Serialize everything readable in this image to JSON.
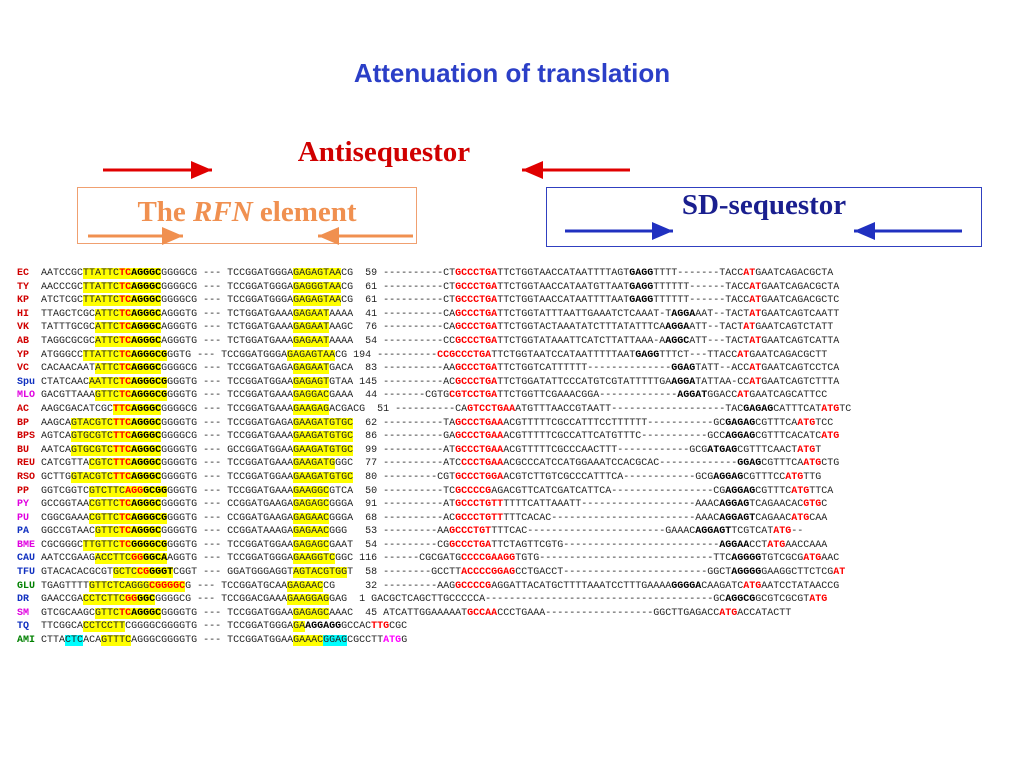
{
  "title": "Attenuation of translation",
  "antisequestor": "Antisequestor",
  "rfn": {
    "pre": "The ",
    "italic": "RFN",
    "post": " element"
  },
  "sd": "SD-sequestor",
  "colors": {
    "title": "#2b3fc7",
    "antisequestor": "#d00000",
    "rfn": "#f09050",
    "sd": "#1a1f8f"
  },
  "name_colors": {
    "r": "#d00000",
    "b": "#1030c0",
    "m": "#e000e0",
    "g": "#008000"
  },
  "rows": [
    {
      "name": "EC",
      "nc": "r",
      "segs": [
        "AATCCGC",
        "y:TTATTC",
        "yr:TC",
        "yb:AGGGC",
        "GGGGCG --- TCCGGATGGGA",
        "y:GAGAGTAA",
        "CG  59 ----------CT",
        "r:GCCCTGA",
        "TTCTGGTA",
        "ACCATAATTTTAGT",
        "b:GAGG",
        "TTTT-------TACC",
        "r:AT",
        "GAATCAGACGCTA"
      ]
    },
    {
      "name": "TY",
      "nc": "r",
      "segs": [
        "AACCCGC",
        "y:TTATTC",
        "yr:TC",
        "yb:AGGGC",
        "GGGGCG --- TCCGGATGGGA",
        "y:GAGGGTAA",
        "CG  61 ----------CT",
        "r:GCCCTGA",
        "TTCTGGTAACCATAATGTTAAT",
        "b:GAGG",
        "TTTTTT------TACC",
        "r:AT",
        "GAATCAGACGCTA"
      ]
    },
    {
      "name": "KP",
      "nc": "r",
      "segs": [
        "ATCTCGC",
        "y:TTATTC",
        "yr:TC",
        "yb:AGGGC",
        "GGGGCG --- TCCGGATGGGA",
        "y:GAGAGTAA",
        "CG  61 ----------CT",
        "r:GCCCTGA",
        "TTCTGGTAACCATAATTTTAAT",
        "b:GAGG",
        "TTTTTT------TACC",
        "r:AT",
        "GAATCAGACGCTC"
      ]
    },
    {
      "name": "HI",
      "nc": "r",
      "segs": [
        "TTAGCTCGC",
        "y:ATTC",
        "yr:TC",
        "yb:AGGGC",
        "AGGGTG --- TCTGGATGAAA",
        "y:GAGAAT",
        "AAAA  41 ----------CA",
        "r:GCCCTGA",
        "TTCTGGTATTTAATTGAAATCTCAAAT-T",
        "b:AGGA",
        "AAT--TACT",
        "r:AT",
        "GAATCAGTCAATT"
      ]
    },
    {
      "name": "VK",
      "nc": "r",
      "segs": [
        "TATTTGCGC",
        "y:ATTC",
        "yr:TC",
        "yb:AGGGC",
        "AGGGTG --- TCTGGATGAAA",
        "y:GAGAAT",
        "AAGC  76 ----------CA",
        "r:GCCCTGA",
        "TTCTGGTACTAAATATCTTTATATTTCA",
        "b:AGGA",
        "ATT--TACT",
        "r:AT",
        "GAATCAGTCTATT"
      ]
    },
    {
      "name": "AB",
      "nc": "r",
      "segs": [
        "TAGGCGCGC",
        "y:ATTC",
        "yr:TC",
        "yb:AGGGC",
        "AGGGTG --- TCTGGATGAAA",
        "y:GAGAAT",
        "AAAA  54 ----------CC",
        "r:GCCCTGA",
        "TTCTGGTATAAATTCATCTTATTAAA-A",
        "b:AGGC",
        "ATT---TACT",
        "r:AT",
        "GAATCAGTCATTA"
      ]
    },
    {
      "name": "YP",
      "nc": "r",
      "segs": [
        "ATGGGCC",
        "y:TTATTC",
        "yr:TC",
        "yb:AGGGCG",
        "GGTG --- TCCGGATGGGA",
        "y:GAGAGTAA",
        "CG 194 ----------",
        "r:CCGCCCTGA",
        "TTCTGGTAATCCATAATTTTTAAT",
        "b:GAGG",
        "TTTCT---TTACC",
        "r:AT",
        "GAATCAGACGCTT"
      ]
    },
    {
      "name": "VC",
      "nc": "r",
      "segs": [
        "CACAACAAT",
        "y:ATTC",
        "yr:TC",
        "yb:AGGGC",
        "GGGGCG --- TCCGGATGAGA",
        "y:GAGAAT",
        "GACA  83 ----------AA",
        "r:GCCCTGA",
        "TTCTGGTCATTTTTT--------------",
        "b:GGAG",
        "TATT--ACC",
        "r:AT",
        "GAATCAGTCCTCA"
      ]
    },
    {
      "name": "Spu",
      "nc": "b",
      "segs": [
        "CTATCAAC",
        "y:AATTC",
        "yr:TC",
        "yb:AGGGCG",
        "GGGTG --- TCCGGATGGAA",
        "y:GAGAGT",
        "GTAA 145 ----------AC",
        "r:GCCCTGA",
        "TTCTGGATATTCCCATGTCGTATTTTTGA",
        "b:AGGA",
        "TATTAA-CC",
        "r:AT",
        "GAATCAGTCTTTA"
      ]
    },
    {
      "name": "MLO",
      "nc": "m",
      "segs": [
        "GACGTTAAA",
        "y:GTTC",
        "yr:TC",
        "yb:AGGGCG",
        "GGGTG --- TCCGGATGAAA",
        "y:GAGGAC",
        "GAAA  44 -------CGTG",
        "r:CGTCCTGA",
        "TTCTGGTTCGAAACGGA-------------",
        "b:AGGAT",
        "GGACC",
        "r:AT",
        "GAATCAGCATTCC"
      ]
    },
    {
      "name": "AC",
      "nc": "r",
      "segs": [
        "AAGCGACATCGC",
        "yr:TTC",
        "yb:AGGGC",
        "GGGGCG --- TCCGGATGAAA",
        "y:GAAGAG",
        "ACGACG  51 ----------CA",
        "r:GTCCTGAA",
        "ATGTTTAACCGTAATT-------------------TAC",
        "b:GAGAG",
        "CATTTCAT",
        "r:ATG",
        "TC"
      ]
    },
    {
      "name": "BP",
      "nc": "r",
      "segs": [
        "AAGCA",
        "y:GTACGTC",
        "yr:TTC",
        "yb:AGGGC",
        "GGGGTG --- TCCGGATGAGA",
        "y:GAAGATGTGC",
        "  62 ----------TA",
        "r:GCCCTGAA",
        "ACGTTTTTCGCCATTTCCTTTTTT-----------GC",
        "b:GAGAG",
        "CGTTTCA",
        "r:ATG",
        "TCC"
      ]
    },
    {
      "name": "BPS",
      "nc": "r",
      "segs": [
        "AGTCA",
        "y:GTGCGTC",
        "yr:TTC",
        "yb:AGGGC",
        "GGGGCG --- TCCGGATGAAA",
        "y:GAAGATGTGC",
        "  86 ----------GA",
        "r:GCCCTGAA",
        "ACGTTTTTCGCCATTCATGTTTC-----------GCC",
        "b:AGGAG",
        "CGTTTCACATC",
        "r:ATG"
      ]
    },
    {
      "name": "BU",
      "nc": "r",
      "segs": [
        "AATCA",
        "y:GTGCGTC",
        "yr:TTC",
        "yb:AGGGC",
        "GGGGTG --- GCCGGATGGAA",
        "y:GAAGATGTGC",
        "  99 ----------AT",
        "r:GCCCTGAA",
        "ACGTTTTTCGCCCAACTTT------------GCG",
        "b:ATGAG",
        "CGTTTCAACT",
        "r:ATG",
        "T"
      ]
    },
    {
      "name": "REU",
      "nc": "r",
      "segs": [
        "CATCGTTA",
        "y:CGTC",
        "yr:TTC",
        "yb:AGGGC",
        "GGGGTG --- TCCGGATGAAA",
        "y:GAAGATG",
        "GGC  77 ----------ATC",
        "r:CCCTGAA",
        "ACGCCCATCCATGGAAATCCACGCAC-------------",
        "b:GGAG",
        "CGTTTCA",
        "r:ATG",
        "CTG"
      ]
    },
    {
      "name": "RSO",
      "nc": "r",
      "segs": [
        "GCTTG",
        "y:GTACGTC",
        "yr:TTC",
        "yb:AGGGC",
        "GGGGTG --- TCCGGATGGAA",
        "y:GAAGATGTGC",
        "  80 ---------CGT",
        "r:GCCCTGGA",
        "ACGTCTTGTCGCCCATTTCA------------GCG",
        "b:AGGAG",
        "CGTTTCC",
        "r:ATG",
        "TTG"
      ]
    },
    {
      "name": "PP",
      "nc": "r",
      "segs": [
        "GGTCGGTC",
        "y:GTCTTC",
        "yr:AGG",
        "yb:GCGG",
        "GGGTG --- TCCGGATGAAA",
        "y:GAAGGC",
        "GTCA  50 ----------TC",
        "r:GCCCCG",
        "AGACGTTCATCGATCATTCA-----------------CG",
        "b:AGGAG",
        "CGTTTC",
        "r:ATG",
        "TTCA"
      ]
    },
    {
      "name": "PY",
      "nc": "m",
      "segs": [
        "GCCGGTAA",
        "y:CGTTC",
        "yr:TC",
        "yb:AGGGC",
        "GGGGTG --- CCGGATGAAGA",
        "y:GAGAGC",
        "GGGA  91 ----------AT",
        "r:GCCCTGTT",
        "TTTTCATTAAATT-------------------AAAC",
        "b:AGGAG",
        "TCAGAACAC",
        "r:GTG",
        "C"
      ]
    },
    {
      "name": "PU",
      "nc": "m",
      "segs": [
        "CGGCGAAA",
        "y:CGTTC",
        "yr:TC",
        "yb:AGGGCG",
        "GGGTG --- CCGGATGAAGA",
        "y:GAGAAC",
        "GGGA  68 ----------AC",
        "r:GCCCTGTT",
        "TTTCACAC------------------------AAAC",
        "b:AGGAGT",
        "CAGAAC",
        "r:ATG",
        "CAA"
      ]
    },
    {
      "name": "PA",
      "nc": "b",
      "segs": [
        "GGCCGTAAC",
        "y:GTTC",
        "yr:TC",
        "yb:AGGGC",
        "GGGGTG --- CCGGATAAAGA",
        "y:GAGAAC",
        "GGG   53 ---------AA",
        "r:GCCCTGT",
        "TTTCAC-----------------------GAAAC",
        "b:AGGAGT",
        "TCGTCAT",
        "r:ATG",
        "--"
      ]
    },
    {
      "name": "BME",
      "nc": "m",
      "segs": [
        "CGCGGGC",
        "y:TTGTTC",
        "yr:TC",
        "yb:GGGGCG",
        "GGGTG --- TCCGGATGGAA",
        "y:GAGAGC",
        "GAAT  54 ---------CG",
        "r:GCCCTGA",
        "TTCTAGTTCGTG--------------------------",
        "b:AGGAA",
        "CCT",
        "r:ATG",
        "AACCAAA"
      ]
    },
    {
      "name": "CAU",
      "nc": "b",
      "segs": [
        "AATCCGAAG",
        "y:ACCTTC",
        "yr:GG",
        "yb:GGCA",
        "AGGTG --- TCCGGATGGGA",
        "y:GAAGGTC",
        "GGC 116 ------CGCGATG",
        "r:CCCCGAAGG",
        "TGTG-----------------------------TTC",
        "b:AGGGG",
        "TGTCGCG",
        "r:ATG",
        "AAC"
      ]
    },
    {
      "name": "TFU",
      "nc": "b",
      "segs": [
        "GTACACACGCGT",
        "y:GCTC",
        "yr:CG",
        "yb:GGGT",
        "CGGT --- GGATGGGAGGT",
        "y:AGTACGTGG",
        "T  58 --------GCCTT",
        "r:ACCCCGGAG",
        "CCTGACCT------------------------GGCT",
        "b:AGGGG",
        "GAAGGCTTCTCG",
        "r:AT"
      ]
    },
    {
      "name": "GLU",
      "nc": "g",
      "segs": [
        "TGAGTTTT",
        "y:GTTCTC",
        "y:AGGG",
        "yr:CGGGGC",
        "G --- TCCGGATGCAA",
        "y:GAGAAC",
        "CG     32 ---------AAG",
        "r:GCCCCG",
        "AGGATTACATGCTTTTAAATCCTTTGAAAA",
        "b:GGGGA",
        "CAAGATC",
        "r:ATG",
        "AATCCTATAACCG"
      ]
    },
    {
      "name": "DR",
      "nc": "b",
      "segs": [
        "GAACCGA",
        "y:CCTCTTC",
        "yr:GG",
        "yb:GGC",
        "GGGGCG --- TCCGGACGAAA",
        "y:GAAGGAG",
        "GAG  1 GACGCTCAGCTTGCCCCCA--------------------------------------GC",
        "b:AGGCG",
        "GCGTCGCGT",
        "r:ATG"
      ]
    },
    {
      "name": "SM",
      "nc": "m",
      "segs": [
        "GTCGCAAGC",
        "y:GTTC",
        "yr:TC",
        "yb:AGGGC",
        "GGGGTG --- TCCGGATGGAA",
        "y:GAGAGC",
        "AAAC  45 ATCATTGGAAAAAT",
        "r:GCCAA",
        "CCCTGAAA------------------GGC",
        "TTGAGACC",
        "r:ATG",
        "ACCATACTT"
      ]
    },
    {
      "name": "TQ",
      "nc": "b",
      "segs": [
        "TTCGGCA",
        "y:CCTCCTT",
        "CGGGGCGGGGTG --- TCCGGATGGGA",
        "y:GA",
        "b:AGGAGG",
        "GCCAC",
        "r:TTG",
        "CGC"
      ]
    },
    {
      "name": "AMI",
      "nc": "g",
      "segs": [
        "CTTA",
        "c:CTC",
        "ACA",
        "y:GTTTC",
        "AGGGCGGGGTG --- TCCGGATGGAA",
        "y:GAAAC",
        "c:GGAG",
        "CGCCTT",
        "m:ATG",
        "G"
      ]
    }
  ]
}
